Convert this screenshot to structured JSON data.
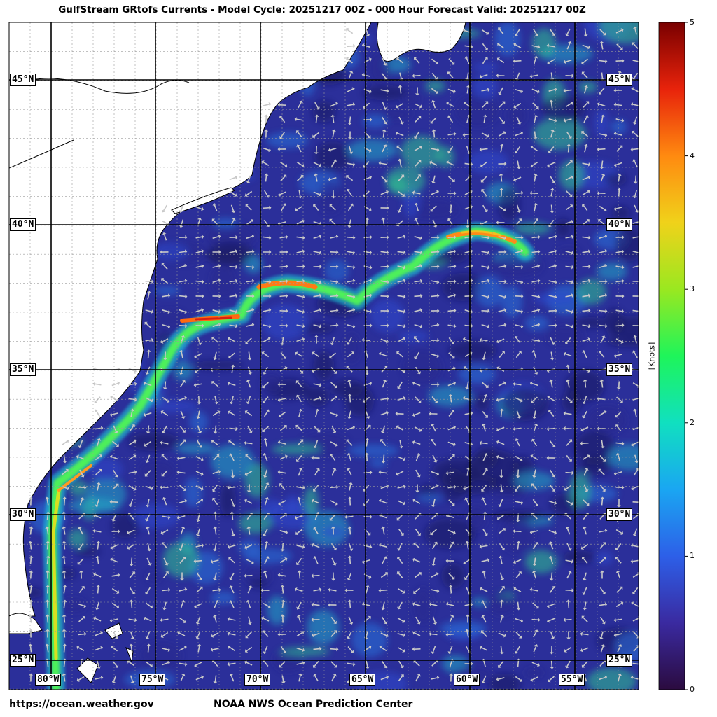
{
  "title": "GulfStream GRtofs Currents - Model Cycle: 20251217 00Z - 000 Hour Forecast Valid: 20251217 00Z",
  "map": {
    "lat_labels": [
      "45°N",
      "40°N",
      "35°N",
      "30°N",
      "25°N"
    ],
    "lon_labels": [
      "80°W",
      "75°W",
      "70°W",
      "65°W",
      "60°W",
      "55°W"
    ],
    "colors": {
      "ocean_base": "#2b2f9a",
      "land": "#ffffff",
      "coast": "#000000",
      "arrow": "#c8c8c8",
      "grid_major": "#000000",
      "grid_minor": "#9a9a9a"
    }
  },
  "colorbar": {
    "label": "[Knots]",
    "ticks": [
      "0",
      "1",
      "2",
      "3",
      "4",
      "5"
    ],
    "range": [
      0,
      5
    ],
    "colormap": [
      "#2b0b3f",
      "#3a2aa0",
      "#2d5fe8",
      "#1aa6f2",
      "#10e0c0",
      "#1ef55a",
      "#9ae820",
      "#f0d21a",
      "#ff8a10",
      "#e8230b",
      "#7a0000"
    ]
  },
  "footer": {
    "left": "https://ocean.weather.gov",
    "right": "NOAA NWS Ocean Prediction Center"
  }
}
